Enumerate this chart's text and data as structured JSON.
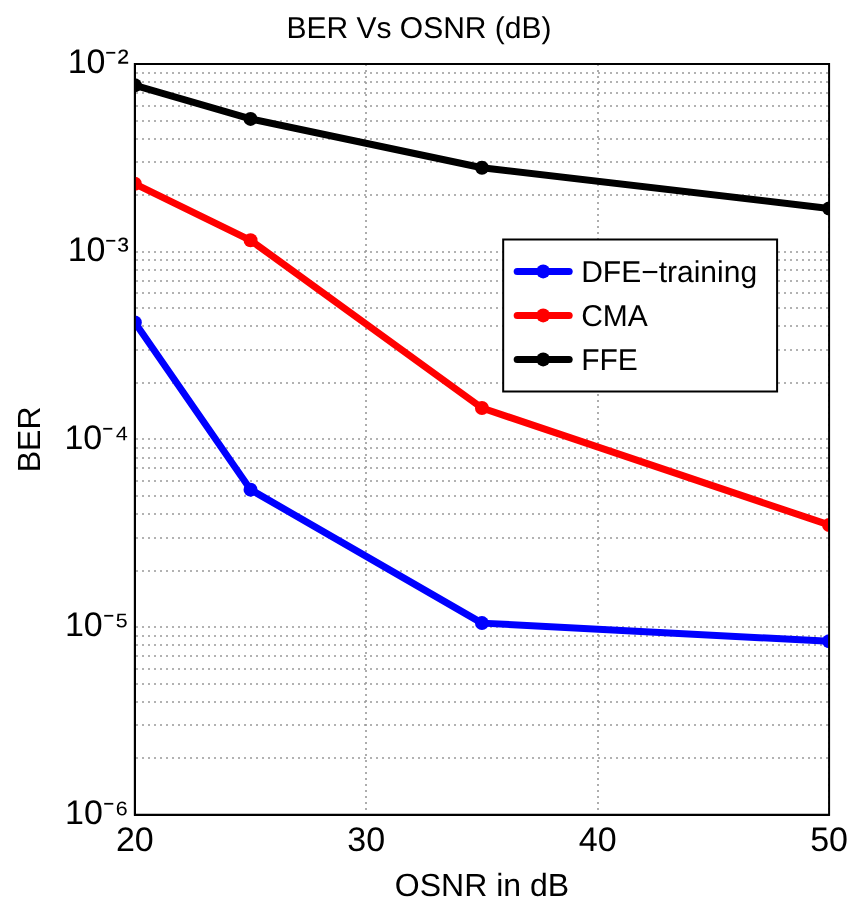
{
  "chart_data": {
    "type": "line",
    "title": "BER Vs OSNR (dB)",
    "xlabel": "OSNR in dB",
    "ylabel": "BER",
    "x": [
      20,
      25,
      35,
      50
    ],
    "series": [
      {
        "name": "DFE−training",
        "color": "#0000ff",
        "values": [
          0.00042,
          5.4e-05,
          1.05e-05,
          8.4e-06
        ]
      },
      {
        "name": "CMA",
        "color": "#ff0000",
        "values": [
          0.0023,
          0.00115,
          0.000147,
          3.5e-05
        ]
      },
      {
        "name": "FFE",
        "color": "#000000",
        "values": [
          0.0077,
          0.0051,
          0.0028,
          0.0017
        ]
      }
    ],
    "log": "y",
    "xlim": [
      20,
      50
    ],
    "xticks": [
      20,
      30,
      40,
      50
    ],
    "ylim": [
      1e-06,
      0.01
    ],
    "yticks": [
      {
        "value": 1e-06,
        "label": "10⁻⁶"
      },
      {
        "value": 2e-06,
        "label": null
      },
      {
        "value": 3e-06,
        "label": null
      },
      {
        "value": 4e-06,
        "label": null
      },
      {
        "value": 5e-06,
        "label": null
      },
      {
        "value": 6e-06,
        "label": null
      },
      {
        "value": 7e-06,
        "label": null
      },
      {
        "value": 8e-06,
        "label": null
      },
      {
        "value": 9e-06,
        "label": null
      },
      {
        "value": 1e-05,
        "label": "10⁻⁵"
      },
      {
        "value": 2e-05,
        "label": null
      },
      {
        "value": 3e-05,
        "label": null
      },
      {
        "value": 4e-05,
        "label": null
      },
      {
        "value": 5e-05,
        "label": null
      },
      {
        "value": 6e-05,
        "label": null
      },
      {
        "value": 7e-05,
        "label": null
      },
      {
        "value": 8e-05,
        "label": null
      },
      {
        "value": 9e-05,
        "label": null
      },
      {
        "value": 0.0001,
        "label": "10⁻⁴"
      },
      {
        "value": 0.0002,
        "label": null
      },
      {
        "value": 0.0003,
        "label": null
      },
      {
        "value": 0.0004,
        "label": null
      },
      {
        "value": 0.0005,
        "label": null
      },
      {
        "value": 0.0006,
        "label": null
      },
      {
        "value": 0.0007,
        "label": null
      },
      {
        "value": 0.0008,
        "label": null
      },
      {
        "value": 0.0009,
        "label": null
      },
      {
        "value": 0.001,
        "label": "10⁻³"
      },
      {
        "value": 0.002,
        "label": null
      },
      {
        "value": 0.003,
        "label": null
      },
      {
        "value": 0.004,
        "label": null
      },
      {
        "value": 0.005,
        "label": null
      },
      {
        "value": 0.006,
        "label": null
      },
      {
        "value": 0.007,
        "label": null
      },
      {
        "value": 0.008,
        "label": null
      },
      {
        "value": 0.009,
        "label": null
      },
      {
        "value": 0.01,
        "label": "10⁻²"
      }
    ],
    "grid": true,
    "legend": "right",
    "marker": "circle",
    "line_style": "solid"
  }
}
